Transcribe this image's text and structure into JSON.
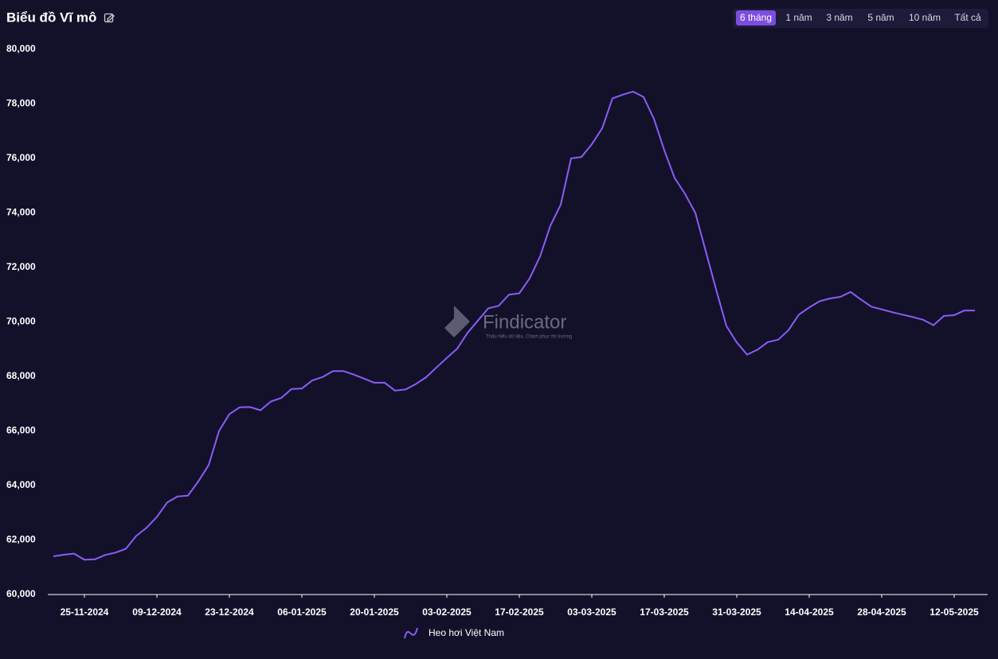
{
  "header": {
    "title": "Biểu đồ Vĩ mô",
    "ranges": [
      {
        "label": "6 tháng",
        "active": true
      },
      {
        "label": "1 năm",
        "active": false
      },
      {
        "label": "3 năm",
        "active": false
      },
      {
        "label": "5 năm",
        "active": false
      },
      {
        "label": "10 năm",
        "active": false
      },
      {
        "label": "Tất cả",
        "active": false
      }
    ]
  },
  "watermark": {
    "name": "Findicator",
    "tagline": "Thấu hiểu dữ liệu, Chinh phục thị trường"
  },
  "chart_data": {
    "type": "line",
    "x": [
      "19-11-2024",
      "21-11-2024",
      "23-11-2024",
      "25-11-2024",
      "27-11-2024",
      "29-11-2024",
      "01-12-2024",
      "03-12-2024",
      "05-12-2024",
      "07-12-2024",
      "09-12-2024",
      "11-12-2024",
      "13-12-2024",
      "15-12-2024",
      "17-12-2024",
      "19-12-2024",
      "21-12-2024",
      "23-12-2024",
      "25-12-2024",
      "27-12-2024",
      "29-12-2024",
      "31-12-2024",
      "02-01-2025",
      "04-01-2025",
      "06-01-2025",
      "08-01-2025",
      "10-01-2025",
      "12-01-2025",
      "14-01-2025",
      "16-01-2025",
      "18-01-2025",
      "20-01-2025",
      "22-01-2025",
      "24-01-2025",
      "26-01-2025",
      "28-01-2025",
      "30-01-2025",
      "01-02-2025",
      "03-02-2025",
      "05-02-2025",
      "07-02-2025",
      "09-02-2025",
      "11-02-2025",
      "13-02-2025",
      "15-02-2025",
      "17-02-2025",
      "19-02-2025",
      "21-02-2025",
      "23-02-2025",
      "25-02-2025",
      "27-02-2025",
      "01-03-2025",
      "03-03-2025",
      "05-03-2025",
      "07-03-2025",
      "09-03-2025",
      "11-03-2025",
      "13-03-2025",
      "15-03-2025",
      "17-03-2025",
      "19-03-2025",
      "21-03-2025",
      "23-03-2025",
      "25-03-2025",
      "27-03-2025",
      "29-03-2025",
      "31-03-2025",
      "02-04-2025",
      "04-04-2025",
      "06-04-2025",
      "08-04-2025",
      "10-04-2025",
      "12-04-2025",
      "14-04-2025",
      "16-04-2025",
      "18-04-2025",
      "20-04-2025",
      "22-04-2025",
      "24-04-2025",
      "26-04-2025",
      "28-04-2025",
      "30-04-2025",
      "02-05-2025",
      "04-05-2025",
      "06-05-2025",
      "08-05-2025",
      "10-05-2025",
      "12-05-2025",
      "14-05-2025",
      "16-05-2025"
    ],
    "series": [
      {
        "name": "Heo hơi Việt Nam",
        "color": "#8b5cf6",
        "values": [
          61400,
          61460,
          61500,
          61280,
          61290,
          61450,
          61540,
          61680,
          62150,
          62450,
          62850,
          63380,
          63600,
          63630,
          64150,
          64750,
          66000,
          66620,
          66870,
          66880,
          66760,
          67080,
          67210,
          67540,
          67560,
          67850,
          67980,
          68200,
          68200,
          68070,
          67920,
          67770,
          67770,
          67480,
          67520,
          67720,
          67970,
          68330,
          68680,
          69020,
          69600,
          70050,
          70500,
          70590,
          71000,
          71050,
          71600,
          72400,
          73530,
          74300,
          76000,
          76050,
          76520,
          77100,
          78200,
          78340,
          78450,
          78250,
          77450,
          76300,
          75280,
          74700,
          74000,
          72600,
          71200,
          69850,
          69250,
          68800,
          68980,
          69260,
          69350,
          69700,
          70270,
          70530,
          70760,
          70860,
          70920,
          71100,
          70820,
          70560,
          70460,
          70360,
          70270,
          70180,
          70080,
          69880,
          70220,
          70250,
          70420,
          70420
        ]
      }
    ],
    "xticks": [
      "25-11-2024",
      "09-12-2024",
      "23-12-2024",
      "06-01-2025",
      "20-01-2025",
      "03-02-2025",
      "17-02-2025",
      "03-03-2025",
      "17-03-2025",
      "31-03-2025",
      "14-04-2025",
      "28-04-2025",
      "12-05-2025"
    ],
    "ylim": [
      60000,
      80000
    ],
    "yticks": [
      {
        "value": 60000,
        "label": "60,000"
      },
      {
        "value": 62000,
        "label": "62,000"
      },
      {
        "value": 64000,
        "label": "64,000"
      },
      {
        "value": 66000,
        "label": "66,000"
      },
      {
        "value": 68000,
        "label": "68,000"
      },
      {
        "value": 70000,
        "label": "70,000"
      },
      {
        "value": 72000,
        "label": "72,000"
      },
      {
        "value": 74000,
        "label": "74,000"
      },
      {
        "value": 76000,
        "label": "76,000"
      },
      {
        "value": 78000,
        "label": "78,000"
      },
      {
        "value": 80000,
        "label": "80,000"
      }
    ],
    "grid": false
  }
}
